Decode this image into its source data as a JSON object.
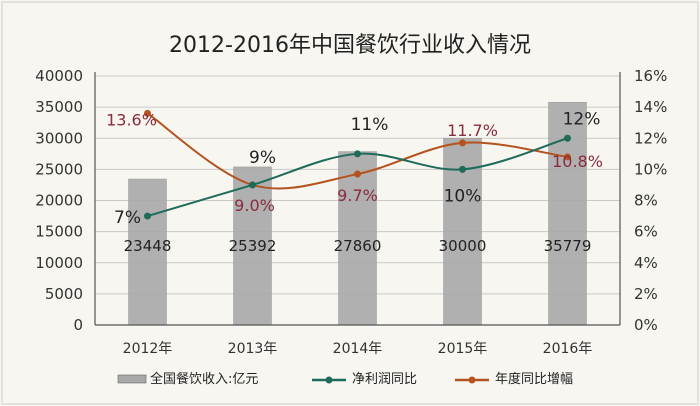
{
  "chart_data": {
    "type": "bar",
    "title": "2012-2016年中国餐饮行业收入情况",
    "categories": [
      "2012年",
      "2013年",
      "2014年",
      "2015年",
      "2016年"
    ],
    "y_left": {
      "ylim": [
        0,
        40000
      ],
      "ticks": [
        "0",
        "5000",
        "10000",
        "15000",
        "20000",
        "25000",
        "30000",
        "35000",
        "40000"
      ]
    },
    "y_right": {
      "ylim": [
        0,
        16
      ],
      "ticks": [
        "0%",
        "2%",
        "4%",
        "6%",
        "8%",
        "10%",
        "12%",
        "14%",
        "16%"
      ]
    },
    "grid": true,
    "legend_position": "bottom",
    "series": [
      {
        "name": "全国餐饮收入:亿元",
        "type": "bar",
        "axis": "left",
        "values": [
          23448,
          25392,
          27860,
          30000,
          35779
        ],
        "labels": [
          "23448",
          "25392",
          "27860",
          "30000",
          "35779"
        ],
        "color": "#a9a9a9"
      },
      {
        "name": "净利润同比",
        "type": "line",
        "axis": "right",
        "values": [
          7,
          9,
          11,
          10,
          12
        ],
        "labels": [
          "7%",
          "9%",
          "11%",
          "10%",
          "12%"
        ],
        "color": "#1f6b5a"
      },
      {
        "name": "年度同比增幅",
        "type": "line",
        "axis": "right",
        "values": [
          13.6,
          9.0,
          9.7,
          11.7,
          10.8
        ],
        "labels": [
          "13.6%",
          "9.0%",
          "9.7%",
          "11.7%",
          "10.8%"
        ],
        "color": "#b5531f",
        "label_color": "#8c2a3e"
      }
    ]
  }
}
